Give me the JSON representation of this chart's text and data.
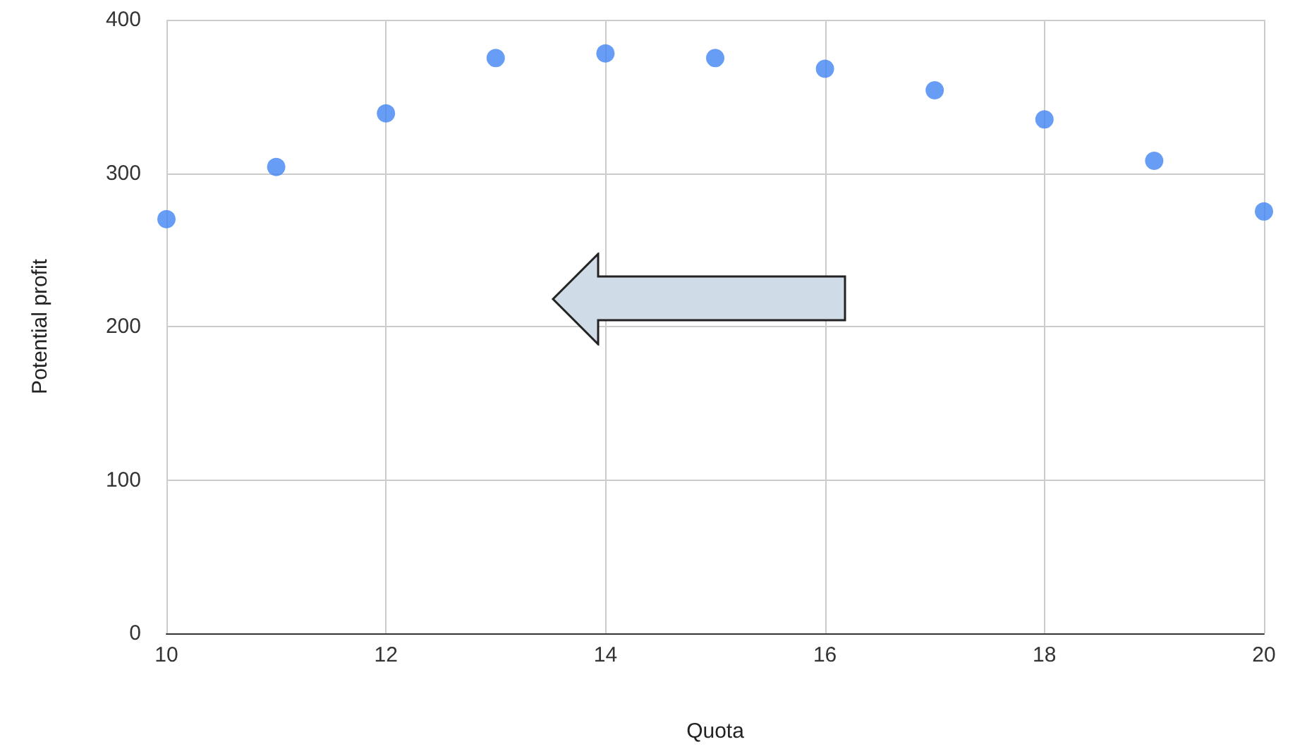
{
  "chart_data": {
    "type": "scatter",
    "xlabel": "Quota",
    "ylabel": "Potential profit",
    "x": [
      10,
      11,
      12,
      13,
      14,
      15,
      16,
      17,
      18,
      19,
      20
    ],
    "series": [
      {
        "color": "#4285f4",
        "values": [
          270,
          304,
          339,
          375,
          378,
          375,
          368,
          354,
          335,
          308,
          275
        ]
      }
    ],
    "xlim": [
      10,
      20
    ],
    "xticks": [
      10,
      12,
      14,
      16,
      18,
      20
    ],
    "ylim": [
      0,
      400
    ],
    "yticks": [
      0,
      100,
      200,
      300,
      400
    ],
    "grid": true,
    "marker": "circle"
  }
}
